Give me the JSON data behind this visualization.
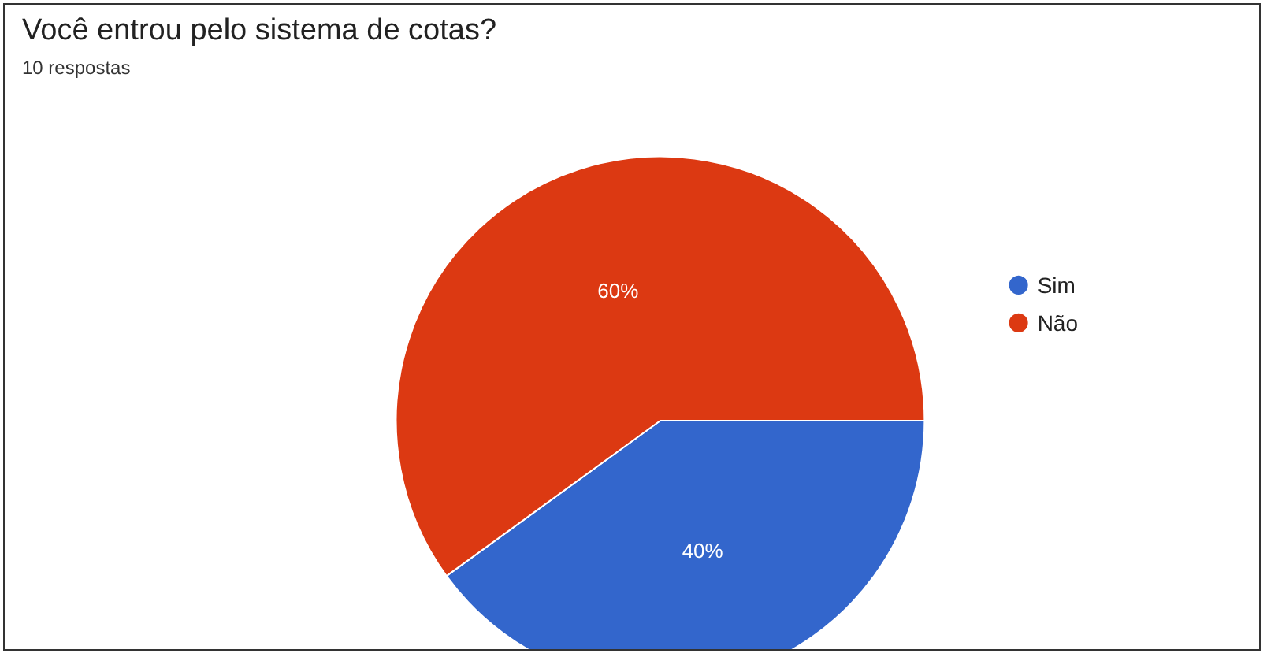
{
  "chart_data": {
    "type": "pie",
    "title": "Você entrou pelo sistema de cotas?",
    "subtitle": "10 respostas",
    "categories": [
      "Sim",
      "Não"
    ],
    "values": [
      40,
      60
    ],
    "colors": [
      "#3366cc",
      "#dc3912"
    ],
    "value_labels": [
      "40%",
      "60%"
    ],
    "legend": "right"
  }
}
